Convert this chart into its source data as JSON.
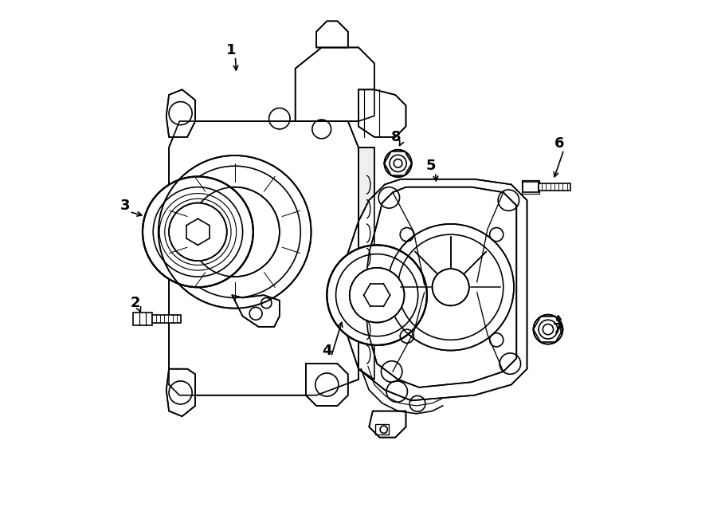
{
  "bg_color": "#ffffff",
  "line_color": "#000000",
  "line_width": 1.2,
  "fig_width": 9.0,
  "fig_height": 6.61
}
